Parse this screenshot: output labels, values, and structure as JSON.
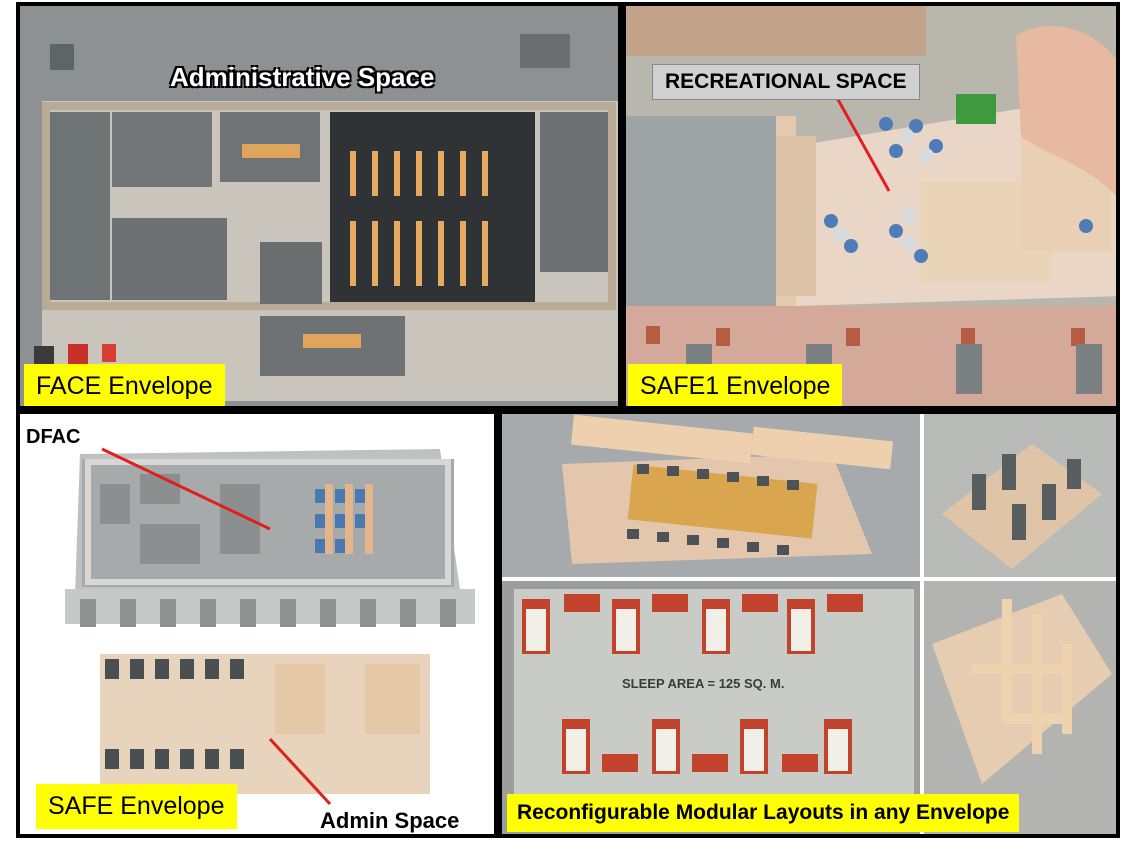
{
  "panels": {
    "face": {
      "label": "FACE Envelope",
      "title": "Administrative Space"
    },
    "safe1": {
      "label": "SAFE1 Envelope",
      "callout": "RECREATIONAL SPACE"
    },
    "safe": {
      "label": "SAFE Envelope",
      "callout_dfac": "DFAC",
      "callout_admin": "Admin Space"
    },
    "modular": {
      "caption": "Reconfigurable Modular Layouts in any Envelope",
      "sleep_area": "SLEEP AREA = 125 SQ. M."
    }
  },
  "colors": {
    "label_bg": "#ffff00",
    "border": "#000000",
    "callout_line": "#e02020"
  }
}
